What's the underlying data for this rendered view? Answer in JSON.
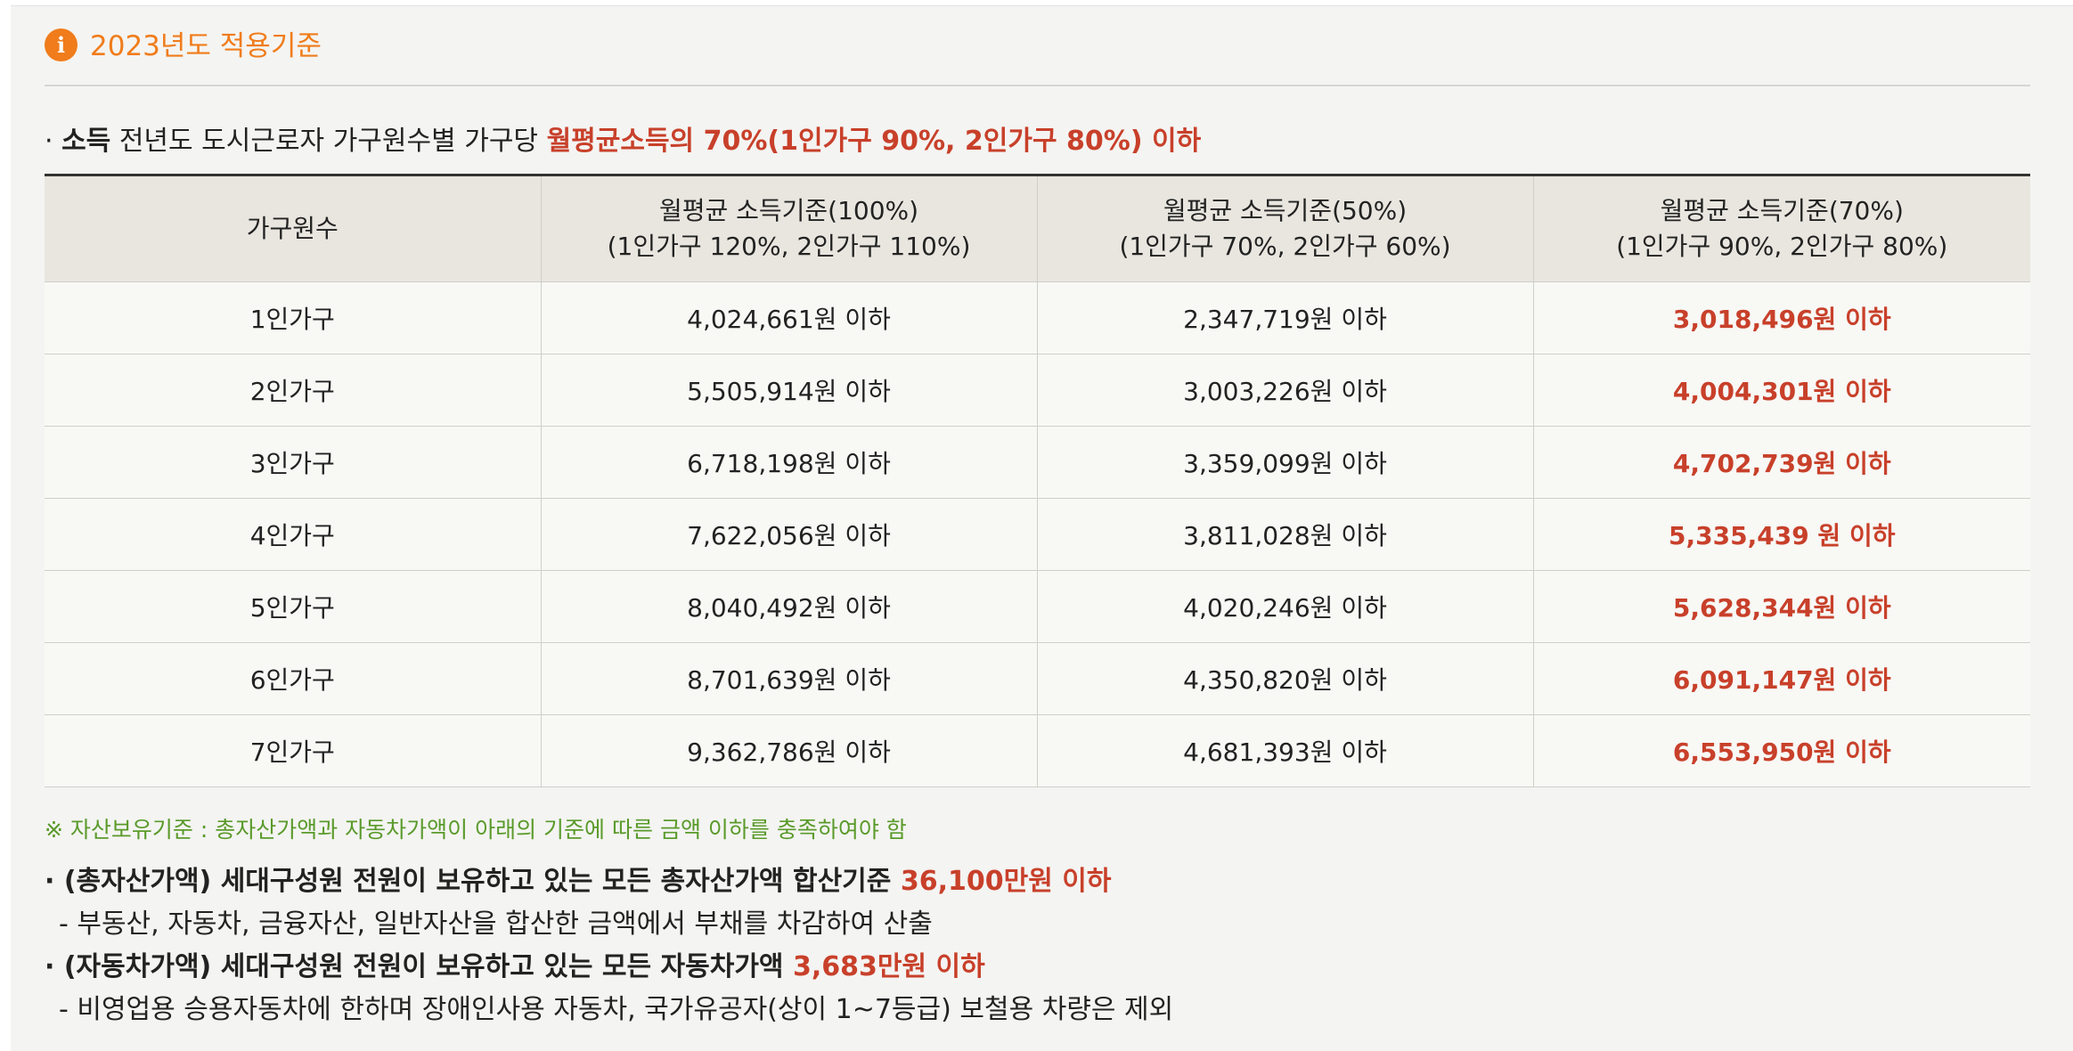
{
  "section": {
    "title": "2023년도 적용기준",
    "icon": "info-icon"
  },
  "income": {
    "bullet": "· ",
    "label": "소득",
    "text": " 전년도 도시근로자 가구원수별 가구당 ",
    "highlight": "월평균소득의 70%(1인가구 90%, 2인가구 80%) 이하"
  },
  "table": {
    "headers": [
      {
        "line1": "가구원수",
        "line2": ""
      },
      {
        "line1": "월평균 소득기준(100%)",
        "line2": "(1인가구 120%, 2인가구 110%)"
      },
      {
        "line1": "월평균 소득기준(50%)",
        "line2": "(1인가구 70%, 2인가구 60%)"
      },
      {
        "line1": "월평균 소득기준(70%)",
        "line2": "(1인가구 90%, 2인가구 80%)"
      }
    ],
    "rows": [
      [
        "1인가구",
        "4,024,661원 이하",
        "2,347,719원 이하",
        "3,018,496원 이하"
      ],
      [
        "2인가구",
        "5,505,914원 이하",
        "3,003,226원 이하",
        "4,004,301원 이하"
      ],
      [
        "3인가구",
        "6,718,198원 이하",
        "3,359,099원 이하",
        "4,702,739원 이하"
      ],
      [
        "4인가구",
        "7,622,056원 이하",
        "3,811,028원 이하",
        "5,335,439 원 이하"
      ],
      [
        "5인가구",
        "8,040,492원 이하",
        "4,020,246원 이하",
        "5,628,344원 이하"
      ],
      [
        "6인가구",
        "8,701,639원 이하",
        "4,350,820원 이하",
        "6,091,147원 이하"
      ],
      [
        "7인가구",
        "9,362,786원 이하",
        "4,681,393원 이하",
        "6,553,950원 이하"
      ]
    ]
  },
  "asset_note": "※ 자산보유기준 : 총자산가액과 자동차가액이 아래의 기준에 따른 금액 이하를 충족하여야 함",
  "assets": [
    {
      "bold": "· (총자산가액) 세대구성원 전원이 보유하고 있는 모든 총자산가액 합산기준 ",
      "highlight": "36,100만원 이하",
      "sub": "- 부동산, 자동차, 금융자산, 일반자산을 합산한 금액에서 부채를 차감하여 산출"
    },
    {
      "bold": "· (자동차가액) 세대구성원 전원이 보유하고 있는 모든 자동차가액 ",
      "highlight": "3,683만원 이하",
      "sub": "- 비영업용 승용자동차에 한하며 장애인사용 자동차, 국가유공자(상이 1~7등급) 보철용 차량은 제외"
    }
  ],
  "colors": {
    "accent_orange": "#f07c1b",
    "highlight_red": "#c8402a",
    "note_green": "#5a9a2a"
  }
}
